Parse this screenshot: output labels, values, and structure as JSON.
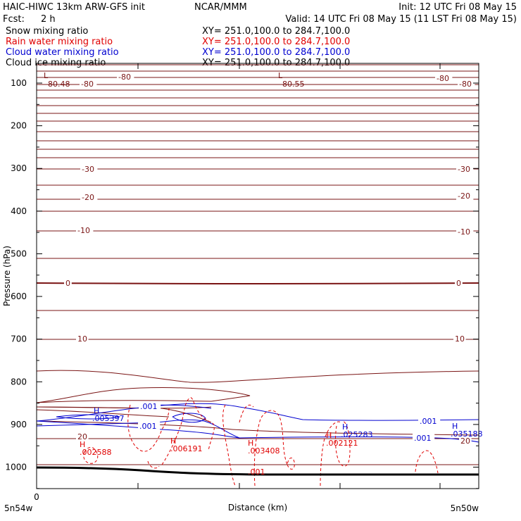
{
  "header": {
    "model": "HAIC-HIWC 13km ARW-GFS init",
    "org": "NCAR/MMM",
    "init": "Init: 12 UTC Fri 08 May 15",
    "fcst_label": "Fcst:",
    "fcst_value": "2 h",
    "valid": "Valid: 14 UTC Fri 08 May 15 (11 LST Fri 08 May 15)",
    "fields": [
      {
        "name": "Snow mixing ratio",
        "xy": "XY= 251.0,100.0 to 284.7,100.0",
        "color": "#000000"
      },
      {
        "name": "Rain water mixing ratio",
        "xy": "XY= 251.0,100.0 to 284.7,100.0",
        "color": "#e00000"
      },
      {
        "name": "Cloud water mixing ratio",
        "xy": "XY= 251.0,100.0 to 284.7,100.0",
        "color": "#0000d0"
      },
      {
        "name": "Cloud ice mixing ratio",
        "xy": "XY= 251.0,100.0 to 284.7,100.0",
        "color": "#000000"
      }
    ]
  },
  "chart_data": {
    "type": "contour cross-section",
    "xlabel": "Distance (km)",
    "ylabel": "Pressure (hPa)",
    "x_tick_left": "0",
    "x_end_left": "5n54w",
    "x_end_right": "5n50w",
    "yticks": [
      100,
      200,
      300,
      400,
      500,
      600,
      700,
      800,
      900,
      1000
    ],
    "ylim": [
      1050,
      50
    ],
    "temperature_labels": [
      "-80",
      "-30",
      "-20",
      "-10",
      "0",
      "10",
      "20"
    ],
    "lows": [
      {
        "letter": "L",
        "value": "-80.48"
      },
      {
        "letter": "L",
        "value": "-80.55"
      }
    ],
    "rain_highs": [
      {
        "letter": "H",
        "value": ".002588"
      },
      {
        "letter": "H",
        "value": ".006191"
      },
      {
        "letter": "H",
        "value": ".003408"
      },
      {
        "letter": "H",
        "value": ".002121"
      }
    ],
    "cloud_highs": [
      {
        "letter": "H",
        "value": ".005397"
      },
      {
        "letter": "H",
        "value": ".025283"
      },
      {
        "letter": "H",
        "value": ".035188"
      }
    ],
    "contour_value_001": ".001",
    "colors": {
      "temperature": "#7a1414",
      "rain": "#e00000",
      "cloud": "#0000d0",
      "ground": "#000000"
    }
  }
}
